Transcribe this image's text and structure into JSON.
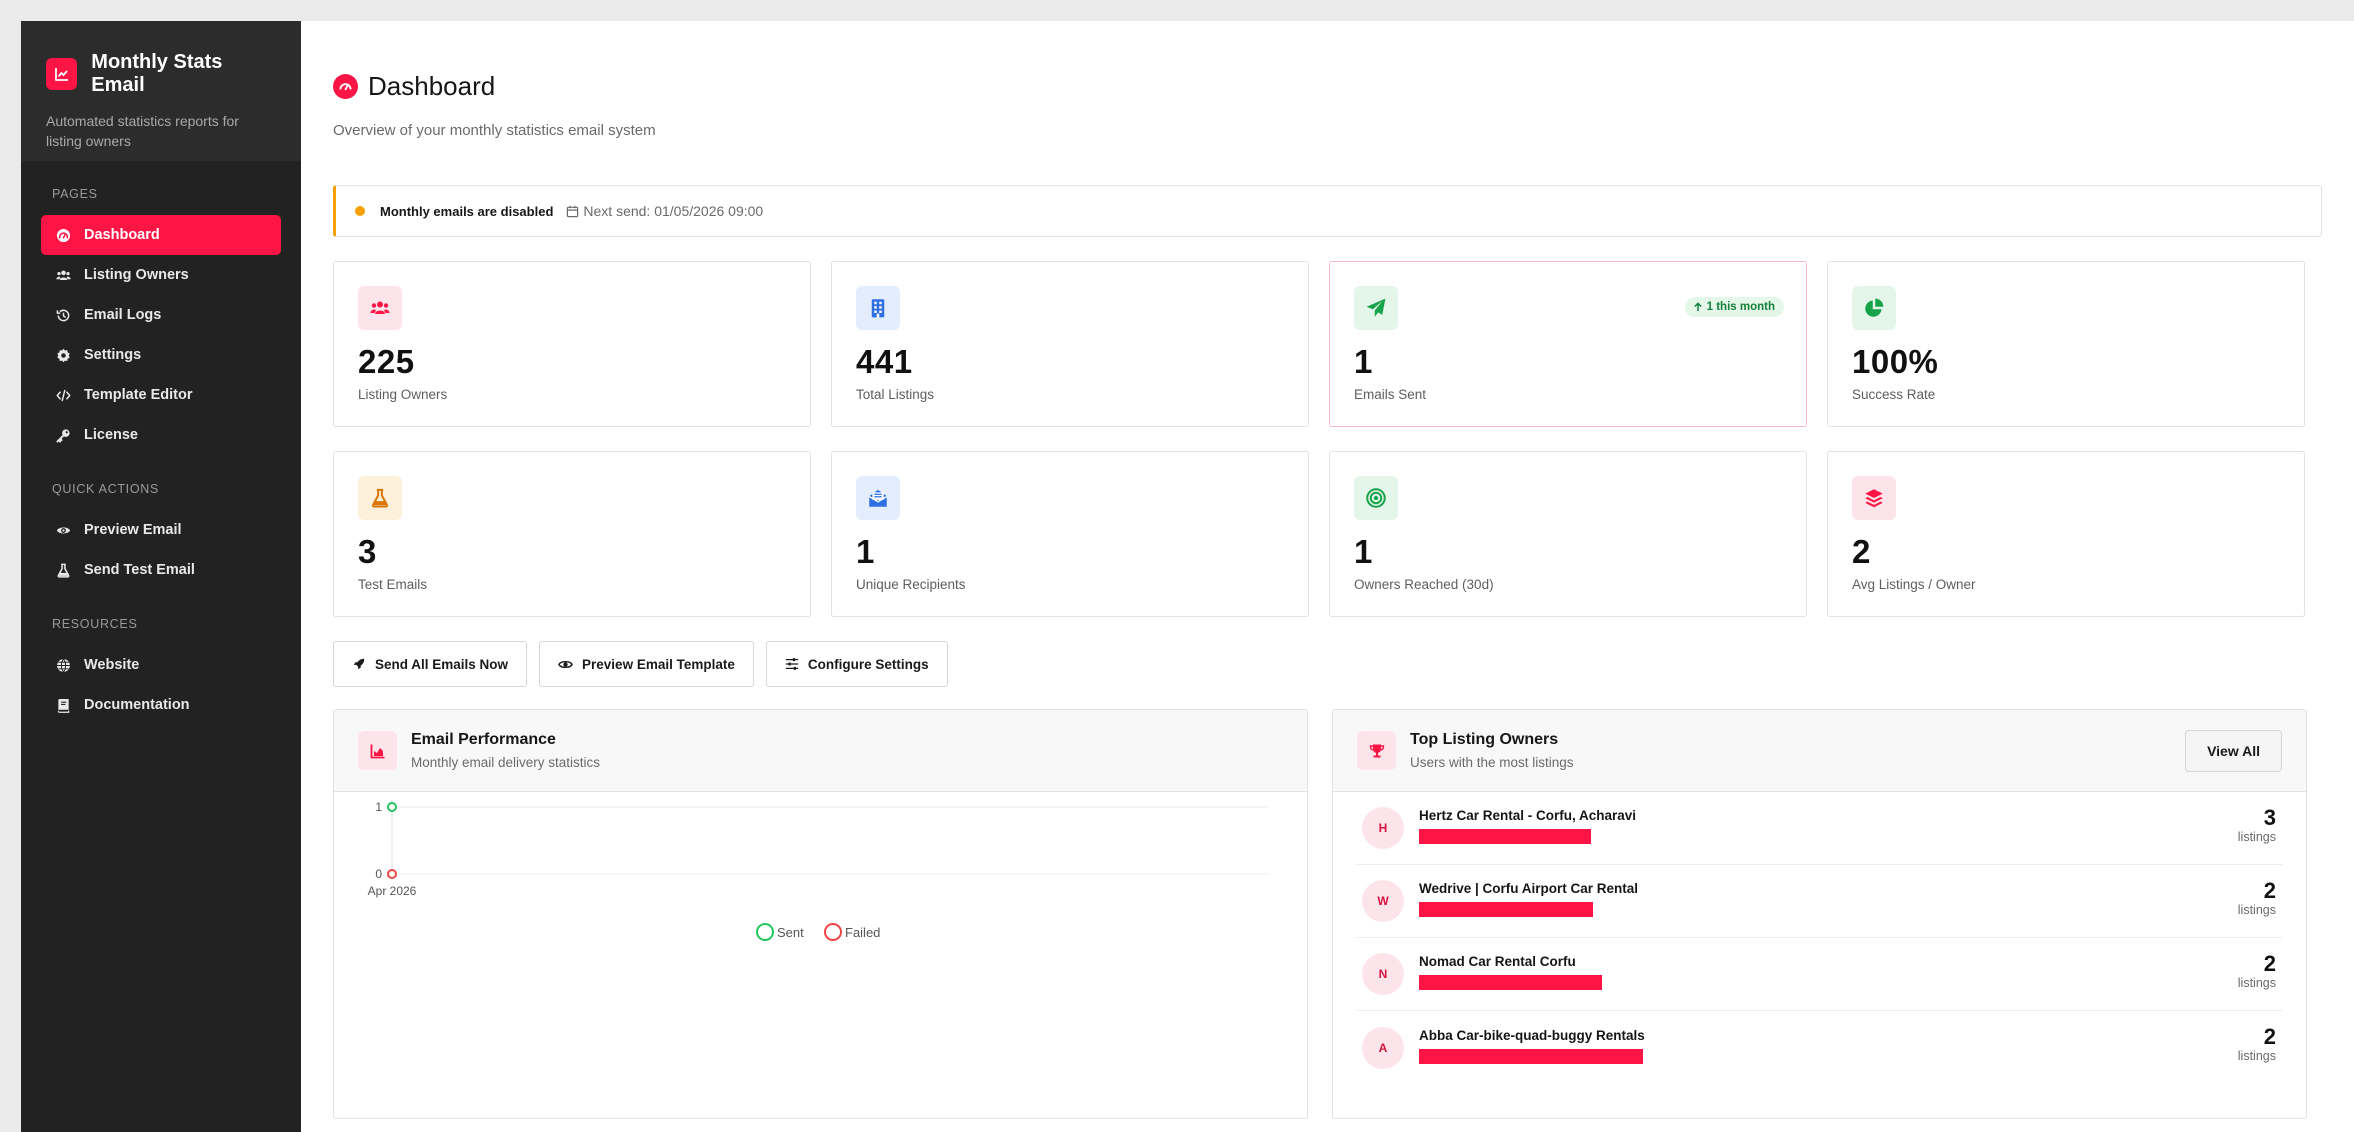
{
  "brand": {
    "title": "Monthly Stats Email",
    "subtitle": "Automated statistics reports for listing owners"
  },
  "sidebar": {
    "sections": [
      {
        "heading": "PAGES",
        "items": [
          {
            "label": "Dashboard",
            "icon": "gauge-icon",
            "active": true
          },
          {
            "label": "Listing Owners",
            "icon": "users-icon"
          },
          {
            "label": "Email Logs",
            "icon": "history-icon"
          },
          {
            "label": "Settings",
            "icon": "gear-icon"
          },
          {
            "label": "Template Editor",
            "icon": "code-icon"
          },
          {
            "label": "License",
            "icon": "key-icon"
          }
        ]
      },
      {
        "heading": "QUICK ACTIONS",
        "items": [
          {
            "label": "Preview Email",
            "icon": "eye-icon"
          },
          {
            "label": "Send Test Email",
            "icon": "flask-icon"
          }
        ]
      },
      {
        "heading": "RESOURCES",
        "items": [
          {
            "label": "Website",
            "icon": "globe-icon"
          },
          {
            "label": "Documentation",
            "icon": "book-icon"
          }
        ]
      }
    ]
  },
  "header": {
    "title": "Dashboard",
    "subtitle": "Overview of your monthly statistics email system"
  },
  "alert": {
    "status": "Monthly emails are disabled",
    "next_send": "Next send: 01/05/2026 09:00",
    "status_color": "#f5a000"
  },
  "stats": [
    {
      "value": "225",
      "label": "Listing Owners",
      "icon": "users-icon",
      "color": "#ff1446",
      "bg": "#fde4ea"
    },
    {
      "value": "441",
      "label": "Total Listings",
      "icon": "building-icon",
      "color": "#2f6fe4",
      "bg": "#e3edfd"
    },
    {
      "value": "1",
      "label": "Emails Sent",
      "icon": "paper-plane-icon",
      "color": "#16a34a",
      "bg": "#e3f6e9",
      "badge": "1 this month"
    },
    {
      "value": "100%",
      "label": "Success Rate",
      "icon": "pie-chart-icon",
      "color": "#16a34a",
      "bg": "#e3f6e9"
    },
    {
      "value": "3",
      "label": "Test Emails",
      "icon": "flask-icon",
      "color": "#d97706",
      "bg": "#fdf1dc"
    },
    {
      "value": "1",
      "label": "Unique Recipients",
      "icon": "envelope-open-icon",
      "color": "#2f6fe4",
      "bg": "#e3edfd"
    },
    {
      "value": "1",
      "label": "Owners Reached (30d)",
      "icon": "target-icon",
      "color": "#16a34a",
      "bg": "#e3f6e9"
    },
    {
      "value": "2",
      "label": "Avg Listings / Owner",
      "icon": "layers-icon",
      "color": "#ff1446",
      "bg": "#fde4ea"
    }
  ],
  "actions": {
    "send_all": "Send All Emails Now",
    "preview": "Preview Email Template",
    "configure": "Configure Settings"
  },
  "performance": {
    "title": "Email Performance",
    "subtitle": "Monthly email delivery statistics"
  },
  "chart_data": {
    "type": "line",
    "x": [
      "Apr 2026"
    ],
    "series": [
      {
        "name": "Sent",
        "values": [
          1
        ],
        "color": "#22c55e"
      },
      {
        "name": "Failed",
        "values": [
          0
        ],
        "color": "#ef4444"
      }
    ],
    "ylim": [
      0,
      1
    ],
    "y_ticks": [
      "0",
      "1"
    ],
    "legend": "bottom",
    "grid": true
  },
  "owners": {
    "title": "Top Listing Owners",
    "subtitle": "Users with the most listings",
    "view_all": "View All",
    "unit": "listings",
    "items": [
      {
        "initial": "H",
        "name": "Hertz Car Rental - Corfu, Acharavi",
        "count": "3",
        "redact_fraction": 0.195
      },
      {
        "initial": "W",
        "name": "Wedrive | Corfu Airport Car Rental",
        "count": "2",
        "redact_fraction": 0.198
      },
      {
        "initial": "N",
        "name": "Nomad Car Rental Corfu",
        "count": "2",
        "redact_fraction": 0.208
      },
      {
        "initial": "A",
        "name": "Abba Car-bike-quad-buggy Rentals",
        "count": "2",
        "redact_fraction": 0.255
      }
    ]
  }
}
